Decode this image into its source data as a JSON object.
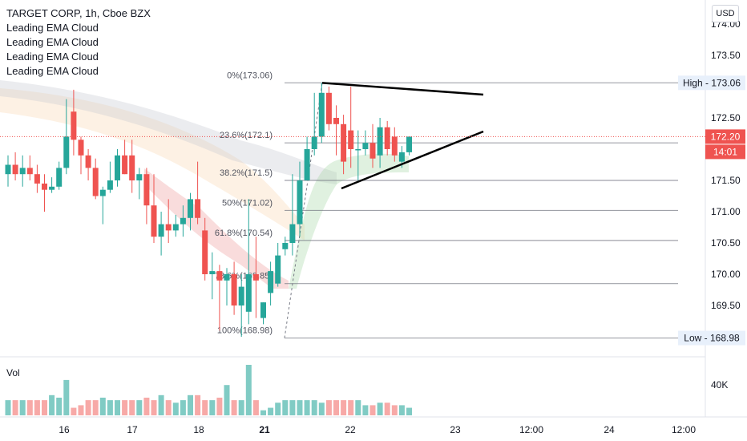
{
  "header": {
    "symbol_line": "TARGET CORP, 1h, Cboe BZX",
    "indicators": [
      "Leading EMA Cloud",
      "Leading EMA Cloud",
      "Leading EMA Cloud",
      "Leading EMA Cloud"
    ],
    "currency_button": "USD",
    "volume_label": "Vol",
    "volume_axis_label": "40K"
  },
  "colors": {
    "up": "#26a69a",
    "down": "#ef5350",
    "up_volume": "#80cbc4",
    "down_volume": "#f7a9a7",
    "fib_line": "#787b86",
    "price_tag": "#ef5350"
  },
  "chart_data": {
    "type": "candlestick",
    "title": "TARGET CORP, 1h, Cboe BZX",
    "ylim": [
      168.6,
      174.1
    ],
    "y_ticks": [
      "174.00",
      "173.50",
      "172.50",
      "171.50",
      "171.00",
      "170.50",
      "170.00",
      "169.50"
    ],
    "x_ticks": [
      "16",
      "17",
      "18",
      "21",
      "22",
      "23",
      "12:00",
      "24",
      "12:00"
    ],
    "current_price": "172.20",
    "countdown": "14:01",
    "high_label": "High - 173.06",
    "low_label": "Low - 168.98",
    "fib_levels": [
      {
        "label": "0%(173.06)",
        "value": 173.06
      },
      {
        "label": "23.6%(172.1)",
        "value": 172.1
      },
      {
        "label": "38.2%(171.5)",
        "value": 171.5
      },
      {
        "label": "50%(171.02)",
        "value": 171.02
      },
      {
        "label": "61.8%(170.54)",
        "value": 170.54
      },
      {
        "label": "78.6%(169.85)",
        "value": 169.85
      },
      {
        "label": "100%(168.98)",
        "value": 168.98
      }
    ],
    "candles": [
      {
        "o": 171.6,
        "h": 171.9,
        "l": 171.4,
        "c": 171.75
      },
      {
        "o": 171.75,
        "h": 171.95,
        "l": 171.5,
        "c": 171.6
      },
      {
        "o": 171.6,
        "h": 171.9,
        "l": 171.4,
        "c": 171.7
      },
      {
        "o": 171.7,
        "h": 171.9,
        "l": 171.5,
        "c": 171.6
      },
      {
        "o": 171.6,
        "h": 171.75,
        "l": 171.3,
        "c": 171.45
      },
      {
        "o": 171.45,
        "h": 171.6,
        "l": 171.0,
        "c": 171.35
      },
      {
        "o": 171.35,
        "h": 171.55,
        "l": 171.3,
        "c": 171.4
      },
      {
        "o": 171.4,
        "h": 171.8,
        "l": 171.35,
        "c": 171.7
      },
      {
        "o": 171.7,
        "h": 172.8,
        "l": 171.6,
        "c": 172.2
      },
      {
        "o": 172.6,
        "h": 172.95,
        "l": 171.9,
        "c": 172.15
      },
      {
        "o": 172.15,
        "h": 172.2,
        "l": 171.6,
        "c": 171.9
      },
      {
        "o": 171.9,
        "h": 172.0,
        "l": 171.5,
        "c": 171.7
      },
      {
        "o": 171.7,
        "h": 171.85,
        "l": 171.2,
        "c": 171.25
      },
      {
        "o": 171.25,
        "h": 171.4,
        "l": 170.8,
        "c": 171.35
      },
      {
        "o": 171.35,
        "h": 171.8,
        "l": 171.3,
        "c": 171.5
      },
      {
        "o": 171.5,
        "h": 172.0,
        "l": 171.4,
        "c": 171.9
      },
      {
        "o": 171.9,
        "h": 172.15,
        "l": 171.6,
        "c": 171.6
      },
      {
        "o": 171.9,
        "h": 172.15,
        "l": 171.3,
        "c": 171.5
      },
      {
        "o": 171.5,
        "h": 171.7,
        "l": 171.2,
        "c": 171.6
      },
      {
        "o": 171.6,
        "h": 171.7,
        "l": 170.8,
        "c": 171.1
      },
      {
        "o": 171.1,
        "h": 171.6,
        "l": 170.5,
        "c": 170.6
      },
      {
        "o": 170.6,
        "h": 171.0,
        "l": 170.3,
        "c": 170.8
      },
      {
        "o": 170.8,
        "h": 171.2,
        "l": 170.5,
        "c": 170.7
      },
      {
        "o": 170.7,
        "h": 170.95,
        "l": 170.6,
        "c": 170.8
      },
      {
        "o": 170.8,
        "h": 171.1,
        "l": 170.6,
        "c": 170.9
      },
      {
        "o": 170.9,
        "h": 171.3,
        "l": 170.7,
        "c": 171.2
      },
      {
        "o": 171.2,
        "h": 171.8,
        "l": 170.8,
        "c": 170.9
      },
      {
        "o": 170.7,
        "h": 170.9,
        "l": 169.9,
        "c": 170.0
      },
      {
        "o": 170.0,
        "h": 170.35,
        "l": 169.6,
        "c": 170.05
      },
      {
        "o": 170.05,
        "h": 170.15,
        "l": 169.1,
        "c": 169.9
      },
      {
        "o": 169.9,
        "h": 170.1,
        "l": 169.5,
        "c": 170.0
      },
      {
        "o": 170.0,
        "h": 170.2,
        "l": 169.35,
        "c": 169.5
      },
      {
        "o": 169.5,
        "h": 170.0,
        "l": 169.0,
        "c": 169.8
      },
      {
        "o": 169.4,
        "h": 171.2,
        "l": 169.2,
        "c": 170.0
      },
      {
        "o": 170.0,
        "h": 170.6,
        "l": 169.3,
        "c": 169.9
      },
      {
        "o": 169.3,
        "h": 169.55,
        "l": 169.2,
        "c": 169.55
      },
      {
        "o": 169.7,
        "h": 170.2,
        "l": 169.5,
        "c": 170.05
      },
      {
        "o": 169.85,
        "h": 170.5,
        "l": 169.8,
        "c": 170.3
      },
      {
        "o": 170.4,
        "h": 170.6,
        "l": 170.3,
        "c": 170.5
      },
      {
        "o": 170.5,
        "h": 171.6,
        "l": 170.3,
        "c": 170.8
      },
      {
        "o": 170.8,
        "h": 171.8,
        "l": 170.6,
        "c": 171.5
      },
      {
        "o": 171.5,
        "h": 172.2,
        "l": 171.5,
        "c": 172.0
      },
      {
        "o": 172.0,
        "h": 172.9,
        "l": 171.9,
        "c": 172.2
      },
      {
        "o": 172.2,
        "h": 173.06,
        "l": 172.1,
        "c": 172.9
      },
      {
        "o": 172.9,
        "h": 173.0,
        "l": 172.3,
        "c": 172.4
      },
      {
        "o": 172.5,
        "h": 172.7,
        "l": 171.9,
        "c": 172.4
      },
      {
        "o": 172.4,
        "h": 172.55,
        "l": 171.6,
        "c": 171.8
      },
      {
        "o": 172.3,
        "h": 173.0,
        "l": 171.7,
        "c": 172.0
      },
      {
        "o": 172.0,
        "h": 172.3,
        "l": 171.5,
        "c": 172.0
      },
      {
        "o": 172.0,
        "h": 172.3,
        "l": 171.9,
        "c": 172.1
      },
      {
        "o": 172.1,
        "h": 172.4,
        "l": 171.7,
        "c": 171.85
      },
      {
        "o": 171.9,
        "h": 172.5,
        "l": 171.7,
        "c": 172.35
      },
      {
        "o": 172.35,
        "h": 172.45,
        "l": 171.9,
        "c": 172.0
      },
      {
        "o": 172.2,
        "h": 172.35,
        "l": 171.8,
        "c": 171.9
      },
      {
        "o": 171.8,
        "h": 172.05,
        "l": 171.7,
        "c": 171.95
      },
      {
        "o": 171.95,
        "h": 172.2,
        "l": 171.9,
        "c": 172.2
      }
    ],
    "volumes": [
      0.3,
      0.3,
      0.3,
      0.3,
      0.3,
      0.3,
      0.4,
      0.35,
      0.7,
      0.15,
      0.2,
      0.3,
      0.3,
      0.35,
      0.3,
      0.3,
      0.3,
      0.3,
      0.3,
      0.35,
      0.3,
      0.4,
      0.3,
      0.25,
      0.3,
      0.4,
      0.4,
      0.3,
      0.3,
      0.35,
      0.6,
      0.3,
      0.3,
      1.0,
      0.3,
      0.1,
      0.15,
      0.25,
      0.3,
      0.3,
      0.3,
      0.3,
      0.3,
      0.25,
      0.3,
      0.3,
      0.3,
      0.3,
      0.3,
      0.2,
      0.2,
      0.25,
      0.25,
      0.2,
      0.2,
      0.15
    ]
  }
}
